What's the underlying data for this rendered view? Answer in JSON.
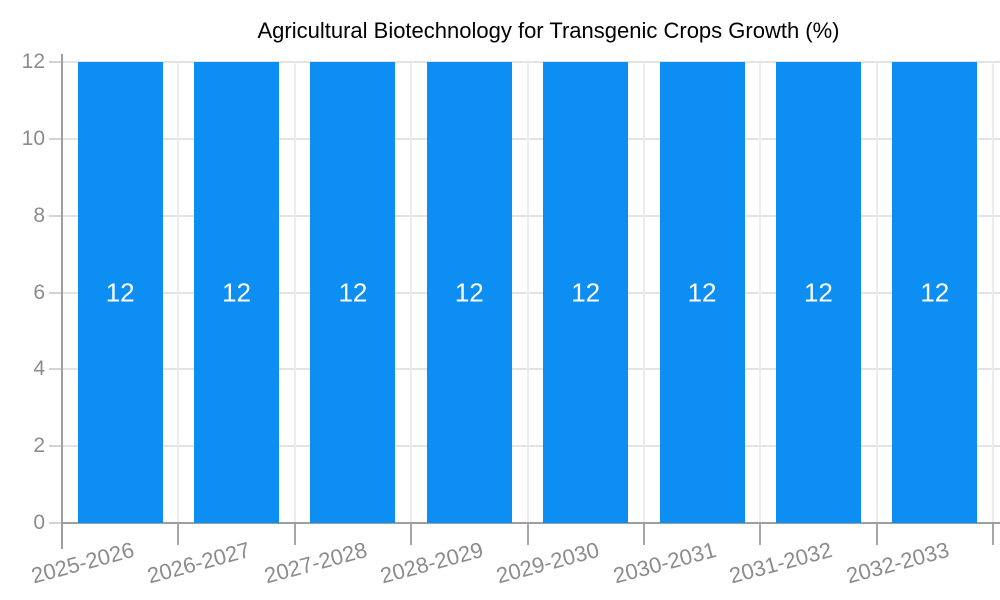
{
  "chart_data": {
    "type": "bar",
    "title": "Agricultural Biotechnology for Transgenic Crops Growth (%)",
    "legend": {
      "position": "top",
      "entries": [
        {
          "label": "Agricultural Biotechnology for Transgenic Crops Growth (%)",
          "color": "#0d8ef2"
        }
      ]
    },
    "categories": [
      "2025-2026",
      "2026-2027",
      "2027-2028",
      "2028-2029",
      "2029-2030",
      "2030-2031",
      "2031-2032",
      "2032-2033"
    ],
    "values": [
      12,
      12,
      12,
      12,
      12,
      12,
      12,
      12
    ],
    "bar_labels": [
      "12",
      "12",
      "12",
      "12",
      "12",
      "12",
      "12",
      "12"
    ],
    "xlabel": "",
    "ylabel": "",
    "ylim": [
      0,
      12
    ],
    "yticks": [
      0,
      2,
      4,
      6,
      8,
      10,
      12
    ],
    "grid": true,
    "colors": {
      "bar": "#0d8ef2",
      "bar_label": "#ffffff",
      "grid_horizontal": "#e3e3e3",
      "grid_vertical": "#ececec",
      "axis": "#9e9e9e",
      "y_tick": "#d4d4d4",
      "x_tick": "#a6a6a6",
      "tick_label": "#8c8c8c",
      "title": "#666666",
      "background": "#ffffff"
    }
  }
}
